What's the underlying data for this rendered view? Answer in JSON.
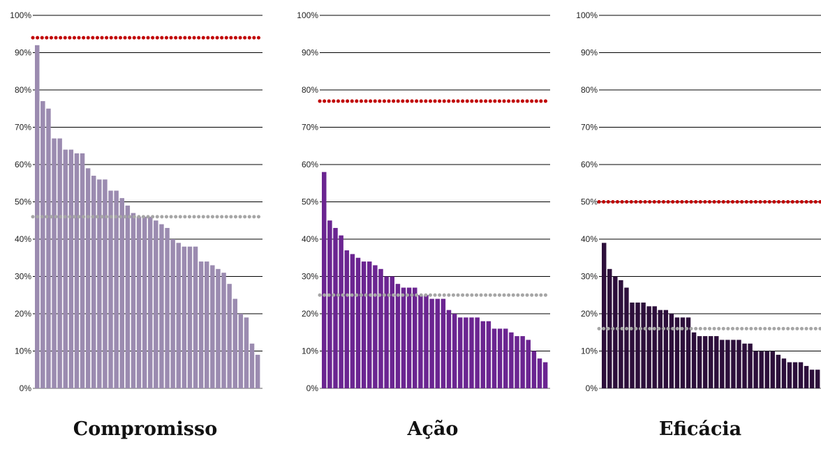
{
  "chart_data": [
    {
      "type": "bar",
      "title": "Compromisso",
      "color": "#9b8bb0",
      "yticks": [
        "0%",
        "10%",
        "20%",
        "30%",
        "40%",
        "50%",
        "60%",
        "70%",
        "80%",
        "90%",
        "100%"
      ],
      "ylim": [
        0,
        100
      ],
      "values": [
        92,
        77,
        75,
        67,
        67,
        64,
        64,
        63,
        63,
        59,
        57,
        56,
        56,
        53,
        53,
        51,
        49,
        47,
        46,
        46,
        46,
        45,
        44,
        43,
        40,
        39,
        38,
        38,
        38,
        34,
        34,
        33,
        32,
        31,
        28,
        24,
        20,
        19,
        12,
        9
      ],
      "reference_lines": [
        {
          "value": 94,
          "color": "#c00000",
          "style": "dotted"
        },
        {
          "value": 46,
          "color": "#a6a6a6",
          "style": "dotted"
        }
      ],
      "grid": true
    },
    {
      "type": "bar",
      "title": "Ação",
      "color": "#6b2591",
      "yticks": [
        "0%",
        "10%",
        "20%",
        "30%",
        "40%",
        "50%",
        "60%",
        "70%",
        "80%",
        "90%",
        "100%"
      ],
      "ylim": [
        0,
        100
      ],
      "values": [
        58,
        45,
        43,
        41,
        37,
        36,
        35,
        34,
        34,
        33,
        32,
        30,
        30,
        28,
        27,
        27,
        27,
        25,
        25,
        24,
        24,
        24,
        21,
        20,
        19,
        19,
        19,
        19,
        18,
        18,
        16,
        16,
        16,
        15,
        14,
        14,
        13,
        10,
        8,
        7
      ],
      "reference_lines": [
        {
          "value": 77,
          "color": "#c00000",
          "style": "dotted"
        },
        {
          "value": 25,
          "color": "#a6a6a6",
          "style": "dotted"
        }
      ],
      "grid": true
    },
    {
      "type": "bar",
      "title": "Eficácia",
      "color": "#2d0f3b",
      "yticks": [
        "0%",
        "10%",
        "20%",
        "30%",
        "40%",
        "50%",
        "60%",
        "70%",
        "80%",
        "90%",
        "100%"
      ],
      "ylim": [
        0,
        100
      ],
      "values": [
        39,
        32,
        30,
        29,
        27,
        23,
        23,
        23,
        22,
        22,
        21,
        21,
        20,
        19,
        19,
        19,
        15,
        14,
        14,
        14,
        14,
        13,
        13,
        13,
        13,
        12,
        12,
        10,
        10,
        10,
        10,
        9,
        8,
        7,
        7,
        7,
        6,
        5,
        5
      ],
      "reference_lines": [
        {
          "value": 50,
          "color": "#c00000",
          "style": "dotted"
        },
        {
          "value": 16,
          "color": "#a6a6a6",
          "style": "dotted"
        }
      ],
      "grid": true
    }
  ]
}
